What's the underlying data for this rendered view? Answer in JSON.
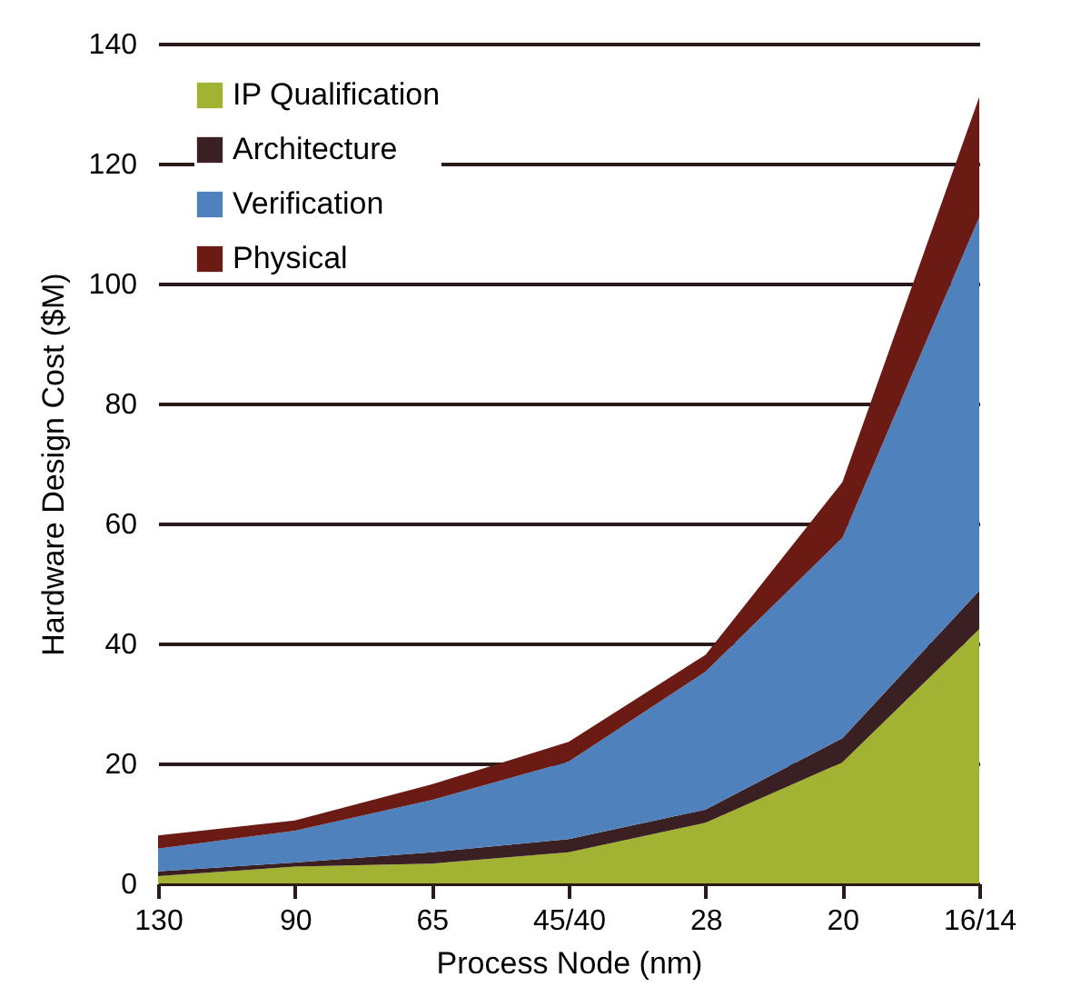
{
  "chart_data": {
    "type": "area",
    "stacked": true,
    "xlabel": "Process Node (nm)",
    "ylabel": "Hardware Design Cost ($M)",
    "categories": [
      "130",
      "90",
      "65",
      "45/40",
      "28",
      "20",
      "16/14"
    ],
    "ylim": [
      0,
      140
    ],
    "yticks": [
      0,
      20,
      40,
      60,
      80,
      100,
      120,
      140
    ],
    "grid": "y",
    "legend": "top left",
    "series": [
      {
        "name": "IP Qualification",
        "color": "#a2b232",
        "values": [
          1.2,
          2.8,
          3.3,
          5.2,
          10.1,
          20.2,
          42.4
        ]
      },
      {
        "name": "Architecture",
        "color": "#3b2023",
        "values": [
          0.8,
          0.7,
          1.9,
          2.2,
          2.2,
          4,
          6.4
        ]
      },
      {
        "name": "Verification",
        "color": "#4f81bd",
        "values": [
          3.8,
          5.3,
          8.7,
          12.9,
          23,
          33.4,
          62.3
        ]
      },
      {
        "name": "Physical",
        "color": "#6b1a14",
        "values": [
          2.2,
          1.7,
          2.6,
          3.3,
          2.8,
          9.3,
          20
        ]
      }
    ]
  }
}
